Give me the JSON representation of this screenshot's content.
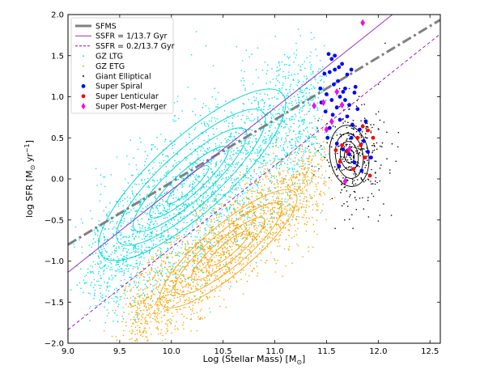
{
  "chart_data": {
    "type": "scatter",
    "title": "",
    "xlabel": "Log (Stellar Mass) [M",
    "xlabel_sub": "⊙",
    "xlabel_end": "]",
    "ylabel": "log SFR [M",
    "ylabel_sub": "⊙",
    "ylabel_mid": " yr",
    "ylabel_sup": "−1",
    "ylabel_end": "]",
    "xlim": [
      9.0,
      12.6
    ],
    "ylim": [
      -2.0,
      2.0
    ],
    "xticks": [
      "9.0",
      "9.5",
      "10.0",
      "10.5",
      "11.0",
      "11.5",
      "12.0",
      "12.5"
    ],
    "yticks": [
      "−2.0",
      "−1.5",
      "−1.0",
      "−0.5",
      "0.0",
      "0.5",
      "1.0",
      "1.5",
      "2.0"
    ],
    "grid": false,
    "legend_position": "top-left",
    "lines": [
      {
        "name": "SFMS",
        "color": "#808080",
        "style": "dashdot",
        "slope": 0.76,
        "intercept": -7.64
      },
      {
        "name": "SSFR = 1/13.7 Gyr",
        "color": "#9932CC",
        "style": "solid",
        "slope": 1.0,
        "intercept": -10.137
      },
      {
        "name": "SSFR = 0.2/13.7 Gyr",
        "color": "#9900CC",
        "style": "dashed",
        "slope": 1.0,
        "intercept": -10.836
      }
    ],
    "series": [
      {
        "name": "GZ LTG",
        "color": "#00E5EE",
        "marker": "dot"
      },
      {
        "name": "GZ ETG",
        "color": "#FFA500",
        "marker": "dot"
      },
      {
        "name": "Giant Elliptical",
        "color": "#000000",
        "marker": "dot"
      },
      {
        "name": "Super Spiral",
        "color": "#0000FF",
        "marker": "circle",
        "points": [
          [
            11.52,
            1.52
          ],
          [
            11.55,
            1.46
          ],
          [
            11.58,
            1.5
          ],
          [
            11.48,
            1.28
          ],
          [
            11.53,
            1.3
          ],
          [
            11.62,
            1.36
          ],
          [
            11.65,
            1.4
          ],
          [
            11.7,
            1.27
          ],
          [
            11.74,
            1.33
          ],
          [
            11.78,
            1.12
          ],
          [
            11.57,
            1.15
          ],
          [
            11.61,
            1.19
          ],
          [
            11.66,
            1.06
          ],
          [
            11.45,
            0.93
          ],
          [
            11.5,
            1.03
          ],
          [
            11.55,
            0.96
          ],
          [
            11.6,
            0.87
          ],
          [
            11.68,
            0.96
          ],
          [
            11.72,
            0.9
          ],
          [
            11.8,
            0.85
          ],
          [
            11.49,
            0.82
          ],
          [
            11.56,
            0.78
          ],
          [
            11.63,
            0.72
          ],
          [
            11.7,
            0.76
          ],
          [
            11.75,
            0.66
          ],
          [
            11.82,
            0.6
          ],
          [
            11.53,
            0.62
          ],
          [
            11.86,
            0.46
          ],
          [
            11.6,
            0.43
          ],
          [
            11.66,
            0.36
          ],
          [
            11.72,
            0.3
          ],
          [
            11.9,
            0.33
          ],
          [
            11.77,
            0.2
          ],
          [
            11.62,
            0.16
          ],
          [
            11.84,
            0.1
          ],
          [
            11.93,
            0.26
          ],
          [
            11.68,
            1.1
          ],
          [
            11.58,
            1.33
          ],
          [
            11.63,
            1.0
          ],
          [
            11.77,
            1.05
          ],
          [
            11.44,
            1.1
          ],
          [
            11.88,
            0.7
          ],
          [
            11.74,
            0.5
          ],
          [
            11.51,
            0.5
          ]
        ]
      },
      {
        "name": "Super Lenticular",
        "color": "#FF0000",
        "marker": "circle",
        "points": [
          [
            11.85,
            0.64
          ],
          [
            11.9,
            0.59
          ],
          [
            11.8,
            0.5
          ],
          [
            11.65,
            0.41
          ],
          [
            11.7,
            0.33
          ],
          [
            11.87,
            0.26
          ],
          [
            11.63,
            0.21
          ],
          [
            11.76,
            0.12
          ],
          [
            11.92,
            0.04
          ],
          [
            11.59,
            0.35
          ],
          [
            11.95,
            0.5
          ],
          [
            11.83,
            0.41
          ]
        ]
      },
      {
        "name": "Super Post-Merger",
        "color": "#FF00FF",
        "marker": "diamond",
        "points": [
          [
            11.85,
            1.9
          ],
          [
            11.38,
            0.89
          ],
          [
            11.47,
            0.93
          ],
          [
            11.6,
            1.06
          ],
          [
            11.65,
            0.9
          ],
          [
            11.55,
            0.7
          ],
          [
            11.5,
            0.6
          ],
          [
            11.72,
            0.36
          ],
          [
            11.68,
            -0.03
          ]
        ]
      }
    ],
    "contours": [
      {
        "name": "GZ LTG",
        "color": "#00CED1"
      },
      {
        "name": "GZ ETG",
        "color": "#F5A623"
      },
      {
        "name": "Giant Elliptical",
        "color": "#000000"
      }
    ],
    "legend": [
      {
        "label": "SFMS"
      },
      {
        "label": "SSFR = 1/13.7 Gyr"
      },
      {
        "label": "SSFR = 0.2/13.7 Gyr"
      },
      {
        "label": "GZ LTG"
      },
      {
        "label": "GZ ETG"
      },
      {
        "label": "Giant Elliptical"
      },
      {
        "label": "Super Spiral"
      },
      {
        "label": "Super Lenticular"
      },
      {
        "label": "Super Post-Merger"
      }
    ]
  }
}
